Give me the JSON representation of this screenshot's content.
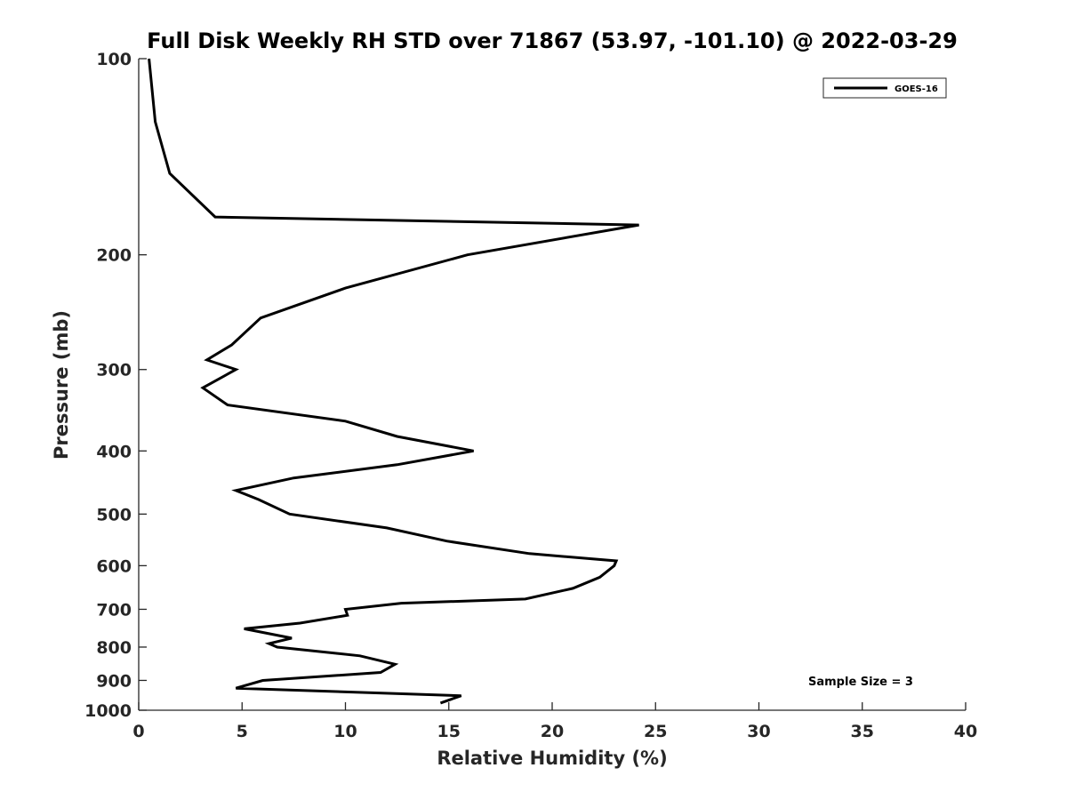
{
  "chart_data": {
    "type": "line",
    "title": "Full Disk Weekly RH STD over 71867 (53.97, -101.10) @ 2022-03-29",
    "xlabel": "Relative Humidity (%)",
    "ylabel": "Pressure (mb)",
    "xlim": [
      0,
      40
    ],
    "ylim": [
      100,
      1000
    ],
    "y_scale": "log",
    "y_reversed": true,
    "x_ticks": [
      0,
      5,
      10,
      15,
      20,
      25,
      30,
      35,
      40
    ],
    "y_ticks": [
      100,
      200,
      300,
      400,
      500,
      600,
      700,
      800,
      900,
      1000
    ],
    "grid": false,
    "legend_position": "top-right",
    "annotation": "Sample Size = 3",
    "series": [
      {
        "name": "GOES-16",
        "color": "#000000",
        "points": [
          [
            0.5,
            100
          ],
          [
            0.8,
            125
          ],
          [
            1.5,
            150
          ],
          [
            3.7,
            175
          ],
          [
            24.2,
            180
          ],
          [
            15.9,
            200
          ],
          [
            10.0,
            225
          ],
          [
            5.9,
            250
          ],
          [
            4.5,
            275
          ],
          [
            3.3,
            290
          ],
          [
            4.7,
            300
          ],
          [
            3.1,
            320
          ],
          [
            4.3,
            340
          ],
          [
            10.0,
            360
          ],
          [
            12.5,
            380
          ],
          [
            16.2,
            400
          ],
          [
            12.5,
            420
          ],
          [
            7.5,
            440
          ],
          [
            4.7,
            460
          ],
          [
            5.8,
            475
          ],
          [
            7.3,
            500
          ],
          [
            12.0,
            525
          ],
          [
            14.9,
            550
          ],
          [
            18.9,
            575
          ],
          [
            23.1,
            590
          ],
          [
            23.0,
            600
          ],
          [
            22.3,
            625
          ],
          [
            21.0,
            650
          ],
          [
            18.7,
            675
          ],
          [
            12.7,
            685
          ],
          [
            10.0,
            700
          ],
          [
            10.1,
            715
          ],
          [
            7.8,
            735
          ],
          [
            5.1,
            750
          ],
          [
            7.4,
            775
          ],
          [
            6.3,
            790
          ],
          [
            6.7,
            800
          ],
          [
            10.7,
            825
          ],
          [
            12.4,
            850
          ],
          [
            11.7,
            875
          ],
          [
            6.0,
            900
          ],
          [
            4.7,
            925
          ],
          [
            15.6,
            950
          ],
          [
            14.6,
            975
          ]
        ]
      }
    ]
  }
}
